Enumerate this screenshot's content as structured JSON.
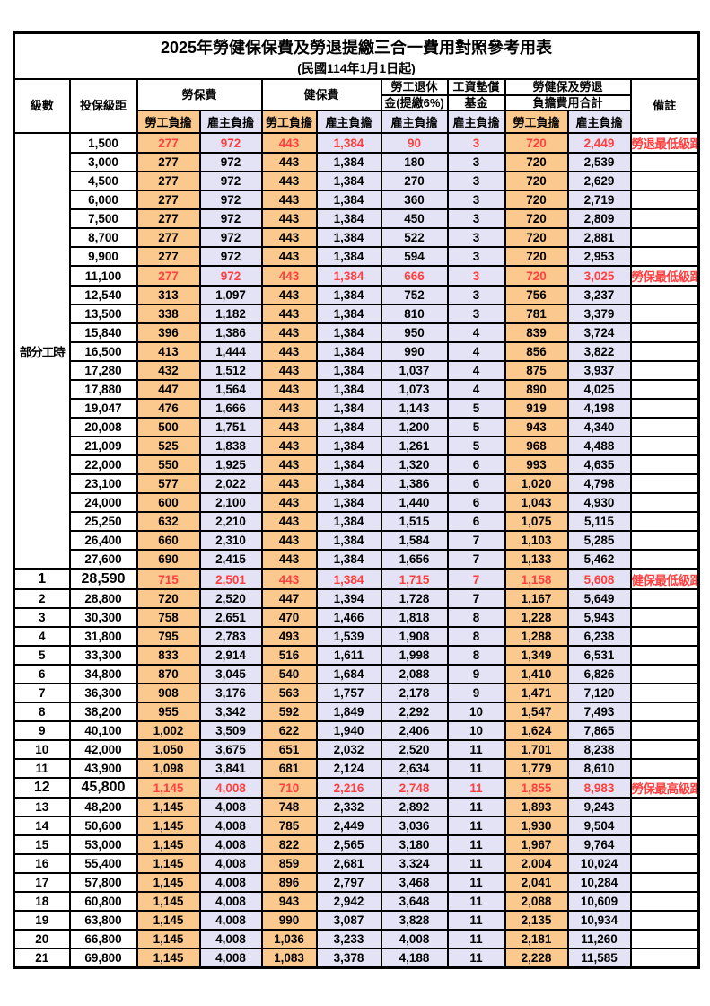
{
  "title": {
    "line1": "2025年勞健保保費及勞退提繳三合一費用對照參考用表",
    "line2": "(民國114年1月1日起)"
  },
  "header": {
    "level": "級數",
    "bracket": "投保級距",
    "labor_fee": "勞保費",
    "health_fee": "健保費",
    "pension_line1": "勞工退休",
    "pension_line2": "金(提繳6%)",
    "wage_fund_line1": "工資墊償",
    "wage_fund_line2": "基金",
    "total_line1": "勞健保及勞退",
    "total_line2": "負擔費用合計",
    "note": "備註",
    "employee": "勞工負擔",
    "employer": "雇主負擔"
  },
  "partial_label": "部分工時",
  "partial_rowspan": 23,
  "colors": {
    "employee_bg": "#FBC88D",
    "employer_bg": "#E3E3F5",
    "highlight": "#FF4040"
  },
  "rows": [
    {
      "level": "",
      "bracket": "1,500",
      "fees": [
        "277",
        "972",
        "443",
        "1,384",
        "90",
        "3",
        "720",
        "2,449"
      ],
      "note": "勞退最低級距",
      "red": true,
      "big": false,
      "sep": false
    },
    {
      "level": "",
      "bracket": "3,000",
      "fees": [
        "277",
        "972",
        "443",
        "1,384",
        "180",
        "3",
        "720",
        "2,539"
      ],
      "note": "",
      "red": false,
      "big": false,
      "sep": false
    },
    {
      "level": "",
      "bracket": "4,500",
      "fees": [
        "277",
        "972",
        "443",
        "1,384",
        "270",
        "3",
        "720",
        "2,629"
      ],
      "note": "",
      "red": false,
      "big": false,
      "sep": false
    },
    {
      "level": "",
      "bracket": "6,000",
      "fees": [
        "277",
        "972",
        "443",
        "1,384",
        "360",
        "3",
        "720",
        "2,719"
      ],
      "note": "",
      "red": false,
      "big": false,
      "sep": false
    },
    {
      "level": "",
      "bracket": "7,500",
      "fees": [
        "277",
        "972",
        "443",
        "1,384",
        "450",
        "3",
        "720",
        "2,809"
      ],
      "note": "",
      "red": false,
      "big": false,
      "sep": false
    },
    {
      "level": "",
      "bracket": "8,700",
      "fees": [
        "277",
        "972",
        "443",
        "1,384",
        "522",
        "3",
        "720",
        "2,881"
      ],
      "note": "",
      "red": false,
      "big": false,
      "sep": false
    },
    {
      "level": "",
      "bracket": "9,900",
      "fees": [
        "277",
        "972",
        "443",
        "1,384",
        "594",
        "3",
        "720",
        "2,953"
      ],
      "note": "",
      "red": false,
      "big": false,
      "sep": false
    },
    {
      "level": "",
      "bracket": "11,100",
      "fees": [
        "277",
        "972",
        "443",
        "1,384",
        "666",
        "3",
        "720",
        "3,025"
      ],
      "note": "勞保最低級距",
      "red": true,
      "big": false,
      "sep": false
    },
    {
      "level": "",
      "bracket": "12,540",
      "fees": [
        "313",
        "1,097",
        "443",
        "1,384",
        "752",
        "3",
        "756",
        "3,237"
      ],
      "note": "",
      "red": false,
      "big": false,
      "sep": false
    },
    {
      "level": "",
      "bracket": "13,500",
      "fees": [
        "338",
        "1,182",
        "443",
        "1,384",
        "810",
        "3",
        "781",
        "3,379"
      ],
      "note": "",
      "red": false,
      "big": false,
      "sep": false
    },
    {
      "level": "",
      "bracket": "15,840",
      "fees": [
        "396",
        "1,386",
        "443",
        "1,384",
        "950",
        "4",
        "839",
        "3,724"
      ],
      "note": "",
      "red": false,
      "big": false,
      "sep": false
    },
    {
      "level": "",
      "bracket": "16,500",
      "fees": [
        "413",
        "1,444",
        "443",
        "1,384",
        "990",
        "4",
        "856",
        "3,822"
      ],
      "note": "",
      "red": false,
      "big": false,
      "sep": false
    },
    {
      "level": "",
      "bracket": "17,280",
      "fees": [
        "432",
        "1,512",
        "443",
        "1,384",
        "1,037",
        "4",
        "875",
        "3,937"
      ],
      "note": "",
      "red": false,
      "big": false,
      "sep": false
    },
    {
      "level": "",
      "bracket": "17,880",
      "fees": [
        "447",
        "1,564",
        "443",
        "1,384",
        "1,073",
        "4",
        "890",
        "4,025"
      ],
      "note": "",
      "red": false,
      "big": false,
      "sep": false
    },
    {
      "level": "",
      "bracket": "19,047",
      "fees": [
        "476",
        "1,666",
        "443",
        "1,384",
        "1,143",
        "5",
        "919",
        "4,198"
      ],
      "note": "",
      "red": false,
      "big": false,
      "sep": false
    },
    {
      "level": "",
      "bracket": "20,008",
      "fees": [
        "500",
        "1,751",
        "443",
        "1,384",
        "1,200",
        "5",
        "943",
        "4,340"
      ],
      "note": "",
      "red": false,
      "big": false,
      "sep": false
    },
    {
      "level": "",
      "bracket": "21,009",
      "fees": [
        "525",
        "1,838",
        "443",
        "1,384",
        "1,261",
        "5",
        "968",
        "4,488"
      ],
      "note": "",
      "red": false,
      "big": false,
      "sep": false
    },
    {
      "level": "",
      "bracket": "22,000",
      "fees": [
        "550",
        "1,925",
        "443",
        "1,384",
        "1,320",
        "6",
        "993",
        "4,635"
      ],
      "note": "",
      "red": false,
      "big": false,
      "sep": false
    },
    {
      "level": "",
      "bracket": "23,100",
      "fees": [
        "577",
        "2,022",
        "443",
        "1,384",
        "1,386",
        "6",
        "1,020",
        "4,798"
      ],
      "note": "",
      "red": false,
      "big": false,
      "sep": false
    },
    {
      "level": "",
      "bracket": "24,000",
      "fees": [
        "600",
        "2,100",
        "443",
        "1,384",
        "1,440",
        "6",
        "1,043",
        "4,930"
      ],
      "note": "",
      "red": false,
      "big": false,
      "sep": false
    },
    {
      "level": "",
      "bracket": "25,250",
      "fees": [
        "632",
        "2,210",
        "443",
        "1,384",
        "1,515",
        "6",
        "1,075",
        "5,115"
      ],
      "note": "",
      "red": false,
      "big": false,
      "sep": false
    },
    {
      "level": "",
      "bracket": "26,400",
      "fees": [
        "660",
        "2,310",
        "443",
        "1,384",
        "1,584",
        "7",
        "1,103",
        "5,285"
      ],
      "note": "",
      "red": false,
      "big": false,
      "sep": false
    },
    {
      "level": "",
      "bracket": "27,600",
      "fees": [
        "690",
        "2,415",
        "443",
        "1,384",
        "1,656",
        "7",
        "1,133",
        "5,462"
      ],
      "note": "",
      "red": false,
      "big": false,
      "sep": false
    },
    {
      "level": "1",
      "bracket": "28,590",
      "fees": [
        "715",
        "2,501",
        "443",
        "1,384",
        "1,715",
        "7",
        "1,158",
        "5,608"
      ],
      "note": "健保最低級距",
      "red": true,
      "big": true,
      "sep": true
    },
    {
      "level": "2",
      "bracket": "28,800",
      "fees": [
        "720",
        "2,520",
        "447",
        "1,394",
        "1,728",
        "7",
        "1,167",
        "5,649"
      ],
      "note": "",
      "red": false,
      "big": false,
      "sep": false
    },
    {
      "level": "3",
      "bracket": "30,300",
      "fees": [
        "758",
        "2,651",
        "470",
        "1,466",
        "1,818",
        "8",
        "1,228",
        "5,943"
      ],
      "note": "",
      "red": false,
      "big": false,
      "sep": false
    },
    {
      "level": "4",
      "bracket": "31,800",
      "fees": [
        "795",
        "2,783",
        "493",
        "1,539",
        "1,908",
        "8",
        "1,288",
        "6,238"
      ],
      "note": "",
      "red": false,
      "big": false,
      "sep": false
    },
    {
      "level": "5",
      "bracket": "33,300",
      "fees": [
        "833",
        "2,914",
        "516",
        "1,611",
        "1,998",
        "8",
        "1,349",
        "6,531"
      ],
      "note": "",
      "red": false,
      "big": false,
      "sep": false
    },
    {
      "level": "6",
      "bracket": "34,800",
      "fees": [
        "870",
        "3,045",
        "540",
        "1,684",
        "2,088",
        "9",
        "1,410",
        "6,826"
      ],
      "note": "",
      "red": false,
      "big": false,
      "sep": false
    },
    {
      "level": "7",
      "bracket": "36,300",
      "fees": [
        "908",
        "3,176",
        "563",
        "1,757",
        "2,178",
        "9",
        "1,471",
        "7,120"
      ],
      "note": "",
      "red": false,
      "big": false,
      "sep": false
    },
    {
      "level": "8",
      "bracket": "38,200",
      "fees": [
        "955",
        "3,342",
        "592",
        "1,849",
        "2,292",
        "10",
        "1,547",
        "7,493"
      ],
      "note": "",
      "red": false,
      "big": false,
      "sep": false
    },
    {
      "level": "9",
      "bracket": "40,100",
      "fees": [
        "1,002",
        "3,509",
        "622",
        "1,940",
        "2,406",
        "10",
        "1,624",
        "7,865"
      ],
      "note": "",
      "red": false,
      "big": false,
      "sep": false
    },
    {
      "level": "10",
      "bracket": "42,000",
      "fees": [
        "1,050",
        "3,675",
        "651",
        "2,032",
        "2,520",
        "11",
        "1,701",
        "8,238"
      ],
      "note": "",
      "red": false,
      "big": false,
      "sep": false
    },
    {
      "level": "11",
      "bracket": "43,900",
      "fees": [
        "1,098",
        "3,841",
        "681",
        "2,124",
        "2,634",
        "11",
        "1,779",
        "8,610"
      ],
      "note": "",
      "red": false,
      "big": false,
      "sep": false
    },
    {
      "level": "12",
      "bracket": "45,800",
      "fees": [
        "1,145",
        "4,008",
        "710",
        "2,216",
        "2,748",
        "11",
        "1,855",
        "8,983"
      ],
      "note": "勞保最高級距",
      "red": true,
      "big": true,
      "sep": false
    },
    {
      "level": "13",
      "bracket": "48,200",
      "fees": [
        "1,145",
        "4,008",
        "748",
        "2,332",
        "2,892",
        "11",
        "1,893",
        "9,243"
      ],
      "note": "",
      "red": false,
      "big": false,
      "sep": false
    },
    {
      "level": "14",
      "bracket": "50,600",
      "fees": [
        "1,145",
        "4,008",
        "785",
        "2,449",
        "3,036",
        "11",
        "1,930",
        "9,504"
      ],
      "note": "",
      "red": false,
      "big": false,
      "sep": false
    },
    {
      "level": "15",
      "bracket": "53,000",
      "fees": [
        "1,145",
        "4,008",
        "822",
        "2,565",
        "3,180",
        "11",
        "1,967",
        "9,764"
      ],
      "note": "",
      "red": false,
      "big": false,
      "sep": false
    },
    {
      "level": "16",
      "bracket": "55,400",
      "fees": [
        "1,145",
        "4,008",
        "859",
        "2,681",
        "3,324",
        "11",
        "2,004",
        "10,024"
      ],
      "note": "",
      "red": false,
      "big": false,
      "sep": false
    },
    {
      "level": "17",
      "bracket": "57,800",
      "fees": [
        "1,145",
        "4,008",
        "896",
        "2,797",
        "3,468",
        "11",
        "2,041",
        "10,284"
      ],
      "note": "",
      "red": false,
      "big": false,
      "sep": false
    },
    {
      "level": "18",
      "bracket": "60,800",
      "fees": [
        "1,145",
        "4,008",
        "943",
        "2,942",
        "3,648",
        "11",
        "2,088",
        "10,609"
      ],
      "note": "",
      "red": false,
      "big": false,
      "sep": false
    },
    {
      "level": "19",
      "bracket": "63,800",
      "fees": [
        "1,145",
        "4,008",
        "990",
        "3,087",
        "3,828",
        "11",
        "2,135",
        "10,934"
      ],
      "note": "",
      "red": false,
      "big": false,
      "sep": false
    },
    {
      "level": "20",
      "bracket": "66,800",
      "fees": [
        "1,145",
        "4,008",
        "1,036",
        "3,233",
        "4,008",
        "11",
        "2,181",
        "11,260"
      ],
      "note": "",
      "red": false,
      "big": false,
      "sep": false
    },
    {
      "level": "21",
      "bracket": "69,800",
      "fees": [
        "1,145",
        "4,008",
        "1,083",
        "3,378",
        "4,188",
        "11",
        "2,228",
        "11,585"
      ],
      "note": "",
      "red": false,
      "big": false,
      "sep": false
    }
  ]
}
